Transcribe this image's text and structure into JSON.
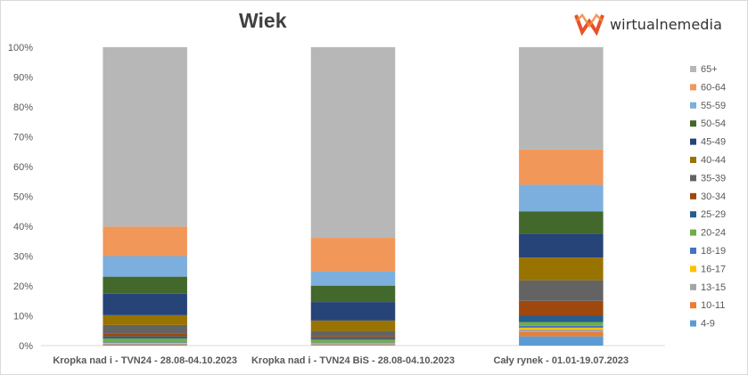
{
  "brand": {
    "name": "wirtualnemedia",
    "accent": "#e8512a"
  },
  "chart_data": {
    "type": "bar",
    "stacked": true,
    "title": "Wiek",
    "xlabel": "",
    "ylabel": "",
    "ylim": [
      0,
      100
    ],
    "y_ticks": [
      "0%",
      "10%",
      "20%",
      "30%",
      "40%",
      "50%",
      "60%",
      "70%",
      "80%",
      "90%",
      "100%"
    ],
    "grid": false,
    "legend_position": "right",
    "categories": [
      "Kropka nad i - TVN24 - 28.08-04.10.2023",
      "Kropka nad i - TVN24 BiS - 28.08-04.10.2023",
      "Cały rynek - 01.01-19.07.2023"
    ],
    "series": [
      {
        "name": "4-9",
        "color": "#5b9bd5",
        "values": [
          0.3,
          0.2,
          3.1
        ]
      },
      {
        "name": "10-11",
        "color": "#ed7d31",
        "values": [
          0.2,
          0.2,
          1.4
        ]
      },
      {
        "name": "13-15",
        "color": "#a5a5a5",
        "values": [
          0.2,
          0.2,
          0.9
        ]
      },
      {
        "name": "16-17",
        "color": "#ffc000",
        "values": [
          0.2,
          0.2,
          0.6
        ]
      },
      {
        "name": "18-19",
        "color": "#4472c4",
        "values": [
          0.2,
          0.2,
          0.6
        ]
      },
      {
        "name": "20-24",
        "color": "#70ad47",
        "values": [
          1.3,
          1.0,
          1.3
        ]
      },
      {
        "name": "25-29",
        "color": "#255e91",
        "values": [
          0.7,
          0.5,
          2.1
        ]
      },
      {
        "name": "30-34",
        "color": "#9e480e",
        "values": [
          0.9,
          0.6,
          5.0
        ]
      },
      {
        "name": "35-39",
        "color": "#636363",
        "values": [
          2.9,
          1.8,
          6.9
        ]
      },
      {
        "name": "40-44",
        "color": "#997300",
        "values": [
          3.3,
          3.5,
          7.6
        ]
      },
      {
        "name": "45-49",
        "color": "#264478",
        "values": [
          7.2,
          6.2,
          8.0
        ]
      },
      {
        "name": "50-54",
        "color": "#43682b",
        "values": [
          5.7,
          5.5,
          7.5
        ]
      },
      {
        "name": "55-59",
        "color": "#7cafdd",
        "values": [
          6.9,
          4.8,
          8.9
        ]
      },
      {
        "name": "60-64",
        "color": "#f1975a",
        "values": [
          9.9,
          11.2,
          11.8
        ]
      },
      {
        "name": "65+",
        "color": "#b7b7b7",
        "values": [
          60.1,
          63.9,
          34.3
        ]
      }
    ]
  }
}
